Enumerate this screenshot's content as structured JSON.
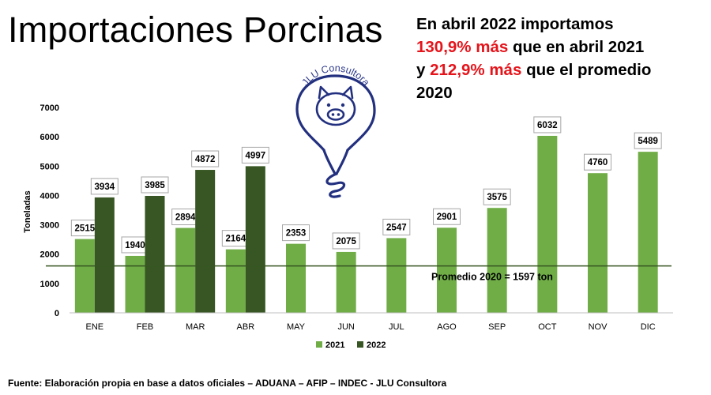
{
  "title": "Importaciones Porcinas",
  "headline": {
    "line1": "En abril 2022 importamos",
    "line2_red": "130,9% más",
    "line2_rest": " que en abril 2021",
    "line3_start": "y ",
    "line3_red": "212,9% más",
    "line3_rest": " que el promedio",
    "line4": "2020"
  },
  "logo_text": "JLU Consultora",
  "source": "Fuente: Elaboración propia en base a datos oficiales – ADUANA – AFIP – INDEC - JLU Consultora",
  "colors": {
    "s2021": "#70ad47",
    "s2022": "#375623",
    "avg_line": "#375623",
    "highlight": "#e5141b"
  },
  "chart_data": {
    "type": "bar",
    "categories": [
      "ENE",
      "FEB",
      "MAR",
      "ABR",
      "MAY",
      "JUN",
      "JUL",
      "AGO",
      "SEP",
      "OCT",
      "NOV",
      "DIC"
    ],
    "series": [
      {
        "name": "2021",
        "values": [
          2515,
          1940,
          2894,
          2164,
          2353,
          2075,
          2547,
          2901,
          3575,
          6032,
          4760,
          5489
        ]
      },
      {
        "name": "2022",
        "values": [
          3934,
          3985,
          4872,
          4997,
          null,
          null,
          null,
          null,
          null,
          null,
          null,
          null
        ]
      }
    ],
    "ylabel": "Toneladas",
    "ylim": [
      0,
      7000
    ],
    "yticks": [
      0,
      1000,
      2000,
      3000,
      4000,
      5000,
      6000,
      7000
    ],
    "reference_line": {
      "value": 1597,
      "label": "Promedio 2020 = 1597 ton"
    },
    "legend_position": "bottom",
    "grid": false
  }
}
